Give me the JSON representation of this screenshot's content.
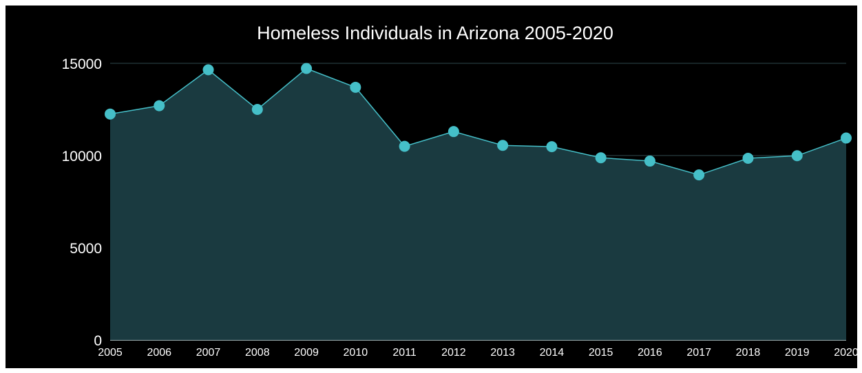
{
  "chart_data": {
    "type": "area",
    "title": "Homeless Individuals in Arizona 2005-2020",
    "xlabel": "",
    "ylabel": "",
    "categories": [
      "2005",
      "2006",
      "2007",
      "2008",
      "2009",
      "2010",
      "2011",
      "2012",
      "2013",
      "2014",
      "2015",
      "2016",
      "2017",
      "2018",
      "2019",
      "2020"
    ],
    "values": [
      12250,
      12700,
      14650,
      12500,
      14720,
      13700,
      10500,
      11300,
      10550,
      10480,
      9880,
      9700,
      8950,
      9850,
      9990,
      10950
    ],
    "ylim": [
      0,
      15000
    ],
    "yticks": [
      "0",
      "5000",
      "10000",
      "15000"
    ],
    "grid": true,
    "legend": "none",
    "colors": {
      "background": "#000000",
      "area_fill": "#1a3a40",
      "line": "#45bfc8",
      "marker": "#45bfc8",
      "grid": "#2f4a4e",
      "axis": "#d0e4e6",
      "text": "#ffffff"
    }
  }
}
